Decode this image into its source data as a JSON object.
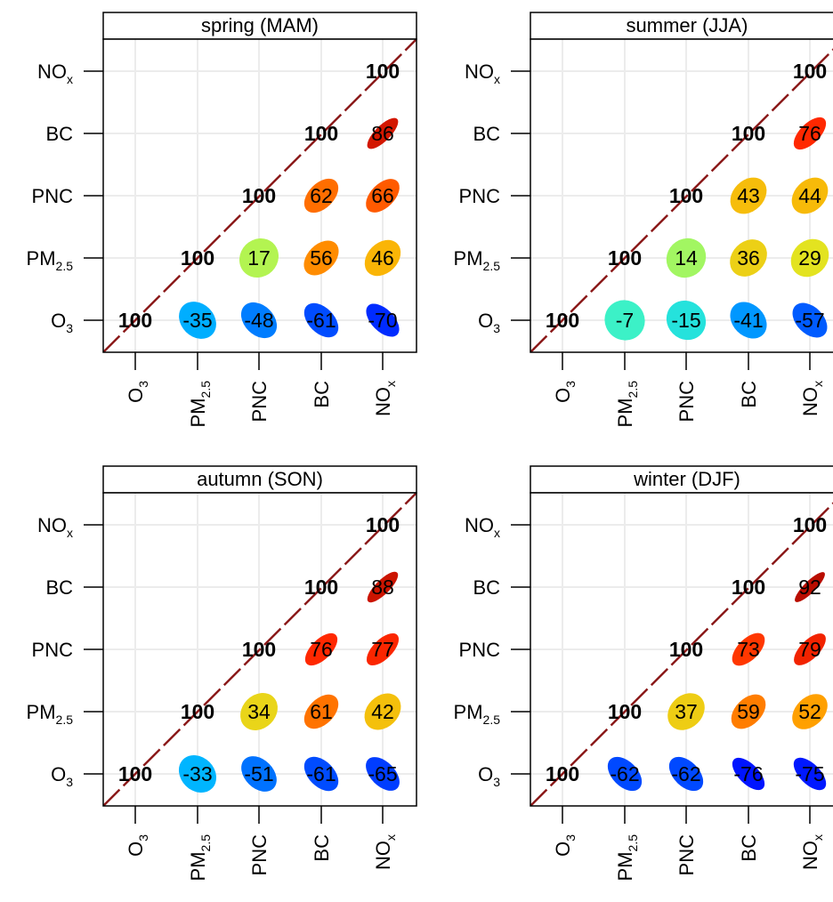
{
  "chart_data": {
    "type": "heatmap",
    "variables": [
      "O3",
      "PM2.5",
      "PNC",
      "BC",
      "NOx"
    ],
    "variable_labels": [
      {
        "main": "O",
        "sub": "3"
      },
      {
        "main": "PM",
        "sub": "2.5"
      },
      {
        "main": "PNC",
        "sub": ""
      },
      {
        "main": "BC",
        "sub": ""
      },
      {
        "main": "NO",
        "sub": "x"
      }
    ],
    "diagonal_value": 100,
    "panels": [
      {
        "title": "spring (MAM)",
        "correlations": [
          {
            "row": "PM2.5",
            "col": "PNC",
            "value": 17
          },
          {
            "row": "O3",
            "col": "PM2.5",
            "value": -35
          },
          {
            "row": "O3",
            "col": "PNC",
            "value": -48
          },
          {
            "row": "O3",
            "col": "BC",
            "value": -61
          },
          {
            "row": "O3",
            "col": "NOx",
            "value": -70
          },
          {
            "row": "PM2.5",
            "col": "BC",
            "value": 56
          },
          {
            "row": "PM2.5",
            "col": "NOx",
            "value": 46
          },
          {
            "row": "PNC",
            "col": "BC",
            "value": 62
          },
          {
            "row": "PNC",
            "col": "NOx",
            "value": 66
          },
          {
            "row": "BC",
            "col": "NOx",
            "value": 86
          }
        ]
      },
      {
        "title": "summer (JJA)",
        "correlations": [
          {
            "row": "O3",
            "col": "PM2.5",
            "value": -7
          },
          {
            "row": "O3",
            "col": "PNC",
            "value": -15
          },
          {
            "row": "O3",
            "col": "BC",
            "value": -41
          },
          {
            "row": "O3",
            "col": "NOx",
            "value": -57
          },
          {
            "row": "PM2.5",
            "col": "PNC",
            "value": 14
          },
          {
            "row": "PM2.5",
            "col": "BC",
            "value": 36
          },
          {
            "row": "PM2.5",
            "col": "NOx",
            "value": 29
          },
          {
            "row": "PNC",
            "col": "BC",
            "value": 43
          },
          {
            "row": "PNC",
            "col": "NOx",
            "value": 44
          },
          {
            "row": "BC",
            "col": "NOx",
            "value": 76
          }
        ]
      },
      {
        "title": "autumn (SON)",
        "correlations": [
          {
            "row": "O3",
            "col": "PM2.5",
            "value": -33
          },
          {
            "row": "O3",
            "col": "PNC",
            "value": -51
          },
          {
            "row": "O3",
            "col": "BC",
            "value": -61
          },
          {
            "row": "O3",
            "col": "NOx",
            "value": -65
          },
          {
            "row": "PM2.5",
            "col": "PNC",
            "value": 34
          },
          {
            "row": "PM2.5",
            "col": "BC",
            "value": 61
          },
          {
            "row": "PM2.5",
            "col": "NOx",
            "value": 42
          },
          {
            "row": "PNC",
            "col": "BC",
            "value": 76
          },
          {
            "row": "PNC",
            "col": "NOx",
            "value": 77
          },
          {
            "row": "BC",
            "col": "NOx",
            "value": 88
          }
        ]
      },
      {
        "title": "winter (DJF)",
        "correlations": [
          {
            "row": "O3",
            "col": "PM2.5",
            "value": -62
          },
          {
            "row": "O3",
            "col": "PNC",
            "value": -62
          },
          {
            "row": "O3",
            "col": "BC",
            "value": -76
          },
          {
            "row": "O3",
            "col": "NOx",
            "value": -75
          },
          {
            "row": "PM2.5",
            "col": "PNC",
            "value": 37
          },
          {
            "row": "PM2.5",
            "col": "BC",
            "value": 59
          },
          {
            "row": "PM2.5",
            "col": "NOx",
            "value": 52
          },
          {
            "row": "PNC",
            "col": "BC",
            "value": 73
          },
          {
            "row": "PNC",
            "col": "NOx",
            "value": 79
          },
          {
            "row": "BC",
            "col": "NOx",
            "value": 92
          }
        ]
      }
    ],
    "grid": true,
    "colors": {
      "strip_fill": "#ffffff",
      "diagonal_line": "#8b1a1a",
      "grid": "#ececec",
      "axis": "#000000"
    }
  }
}
